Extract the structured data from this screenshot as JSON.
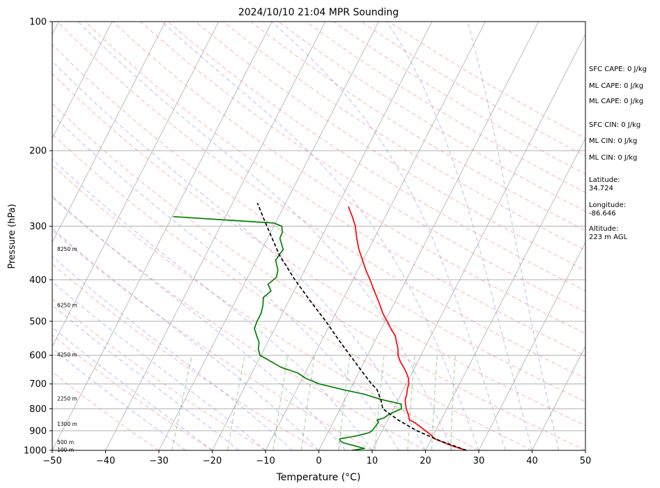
{
  "chart_data": {
    "type": "line",
    "title": "2024/10/10 21:04 MPR Sounding",
    "xlabel": "Temperature (°C)",
    "ylabel": "Pressure (hPa)",
    "xlim": [
      -50,
      50
    ],
    "ylim": [
      1000,
      100
    ],
    "y_scale": "log",
    "grid": true,
    "x_ticks": [
      -50,
      -40,
      -30,
      -20,
      -10,
      0,
      10,
      20,
      30,
      40,
      50
    ],
    "y_ticks": [
      1000,
      900,
      800,
      700,
      600,
      500,
      400,
      300,
      200,
      100
    ],
    "series": [
      {
        "role": "temperature",
        "color": "#ff0000",
        "points": [
          [
            1000,
            27.7
          ],
          [
            980,
            25.0
          ],
          [
            960,
            22.8
          ],
          [
            940,
            20.6
          ],
          [
            920,
            19.5
          ],
          [
            900,
            18.1
          ],
          [
            880,
            16.7
          ],
          [
            860,
            15.2
          ],
          [
            850,
            14.1
          ],
          [
            830,
            13.5
          ],
          [
            800,
            12.4
          ],
          [
            780,
            11.8
          ],
          [
            760,
            11.3
          ],
          [
            740,
            11.1
          ],
          [
            720,
            10.7
          ],
          [
            700,
            10.5
          ],
          [
            680,
            9.9
          ],
          [
            660,
            9.0
          ],
          [
            640,
            7.9
          ],
          [
            620,
            6.7
          ],
          [
            600,
            5.7
          ],
          [
            580,
            5.1
          ],
          [
            560,
            4.2
          ],
          [
            540,
            3.3
          ],
          [
            520,
            1.8
          ],
          [
            500,
            0.4
          ],
          [
            480,
            -1.1
          ],
          [
            460,
            -2.4
          ],
          [
            440,
            -3.8
          ],
          [
            420,
            -5.3
          ],
          [
            400,
            -6.8
          ],
          [
            380,
            -8.5
          ],
          [
            360,
            -10.1
          ],
          [
            340,
            -11.8
          ],
          [
            320,
            -13.3
          ],
          [
            300,
            -14.7
          ],
          [
            285,
            -16.2
          ],
          [
            270,
            -17.9
          ]
        ]
      },
      {
        "role": "dewpoint",
        "color": "#008000",
        "points": [
          [
            1000,
            6.2
          ],
          [
            990,
            8.4
          ],
          [
            975,
            6.1
          ],
          [
            960,
            3.8
          ],
          [
            950,
            3.1
          ],
          [
            940,
            2.8
          ],
          [
            925,
            5.7
          ],
          [
            910,
            7.7
          ],
          [
            900,
            8.1
          ],
          [
            880,
            8.3
          ],
          [
            860,
            8.5
          ],
          [
            850,
            8.0
          ],
          [
            840,
            9.1
          ],
          [
            825,
            9.7
          ],
          [
            810,
            10.7
          ],
          [
            800,
            11.5
          ],
          [
            780,
            11.0
          ],
          [
            760,
            6.6
          ],
          [
            740,
            3.2
          ],
          [
            720,
            -1.7
          ],
          [
            700,
            -6.3
          ],
          [
            680,
            -9.3
          ],
          [
            660,
            -11.4
          ],
          [
            640,
            -15.1
          ],
          [
            620,
            -17.6
          ],
          [
            600,
            -20.2
          ],
          [
            580,
            -21.1
          ],
          [
            560,
            -21.6
          ],
          [
            540,
            -22.7
          ],
          [
            520,
            -23.8
          ],
          [
            500,
            -24.0
          ],
          [
            480,
            -24.0
          ],
          [
            460,
            -24.4
          ],
          [
            440,
            -25.1
          ],
          [
            425,
            -24.3
          ],
          [
            410,
            -25.5
          ],
          [
            395,
            -24.6
          ],
          [
            380,
            -25.0
          ],
          [
            360,
            -26.4
          ],
          [
            340,
            -26.0
          ],
          [
            320,
            -27.7
          ],
          [
            310,
            -27.8
          ],
          [
            300,
            -28.5
          ],
          [
            295,
            -30.3
          ],
          [
            290,
            -40.0
          ],
          [
            285,
            -49.8
          ]
        ]
      },
      {
        "role": "parcel",
        "color": "#000000",
        "style": "dashed",
        "points": [
          [
            1000,
            27.7
          ],
          [
            950,
            21.8
          ],
          [
            900,
            16.5
          ],
          [
            850,
            12.0
          ],
          [
            800,
            8.0
          ],
          [
            760,
            6.7
          ],
          [
            720,
            5.0
          ],
          [
            700,
            3.5
          ],
          [
            650,
            0.2
          ],
          [
            600,
            -3.3
          ],
          [
            550,
            -7.1
          ],
          [
            500,
            -11.1
          ],
          [
            450,
            -15.8
          ],
          [
            400,
            -20.9
          ],
          [
            350,
            -26.2
          ],
          [
            300,
            -31.3
          ],
          [
            265,
            -35.3
          ]
        ]
      }
    ],
    "height_labels": [
      {
        "text": "100 m",
        "pressure": 1000
      },
      {
        "text": "500 m",
        "pressure": 960
      },
      {
        "text": "1300 m",
        "pressure": 870
      },
      {
        "text": "2250 m",
        "pressure": 760
      },
      {
        "text": "4250 m",
        "pressure": 600
      },
      {
        "text": "6250 m",
        "pressure": 460
      },
      {
        "text": "8250 m",
        "pressure": 340
      }
    ],
    "annotations": {
      "sfc_cape": "SFC CAPE: 0 J/kg",
      "ml_cape_1": "ML CAPE: 0 J/kg",
      "ml_cape_2": "ML CAPE: 0 J/kg",
      "sfc_cin": "SFC CIN: 0 J/kg",
      "ml_cin_1": "ML CIN: 0 J/kg",
      "ml_cin_2": "ML CIN: 0 J/kg",
      "latitude_label": "Latitude:",
      "latitude_value": "34.724",
      "longitude_label": "Longitude:",
      "longitude_value": "-86.646",
      "altitude_label": "Altitude:",
      "altitude_value": "223 m AGL"
    },
    "colors": {
      "dry_adiabat": "#ff7f7f",
      "moist_adiabat": "#7f7fff",
      "mixing_ratio": "#2ca02c",
      "isotherm": "#999999"
    }
  }
}
